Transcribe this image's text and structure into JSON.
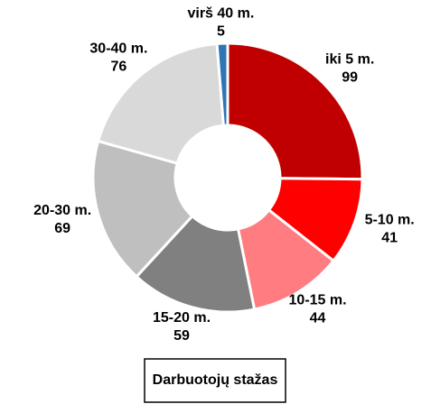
{
  "chart_data": {
    "type": "pie",
    "title": "Darbuotojų stažas",
    "categories": [
      "iki 5 m.",
      "5-10 m.",
      "10-15 m.",
      "15-20 m.",
      "20-30 m.",
      "30-40 m.",
      "virš 40 m."
    ],
    "values": [
      99,
      41,
      44,
      59,
      69,
      76,
      5
    ],
    "colors": [
      "#c00000",
      "#ff0000",
      "#ff7c80",
      "#808080",
      "#bfbfbf",
      "#d9d9d9",
      "#2e75b6"
    ]
  }
}
